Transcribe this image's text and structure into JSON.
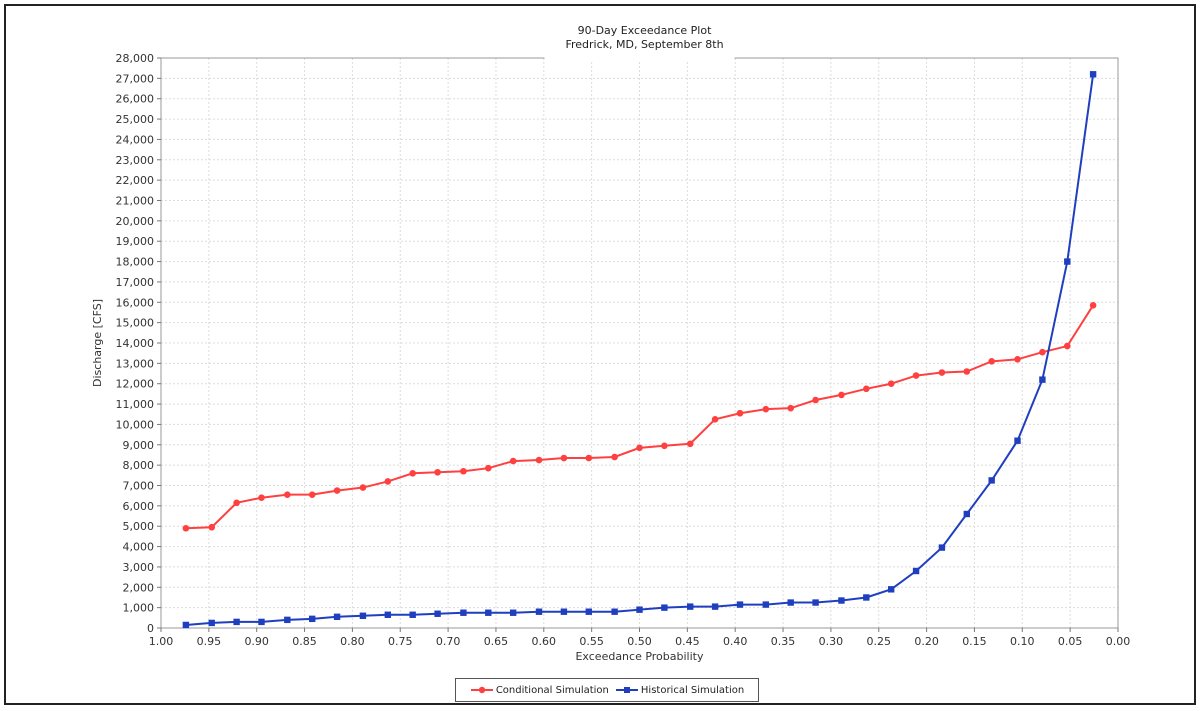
{
  "chart_data": {
    "type": "line",
    "title": "90-Day Exceedance Plot",
    "subtitle": "Fredrick, MD, September 8th",
    "xlabel": "Exceedance Probability",
    "ylabel": "Discharge [CFS]",
    "xlim": [
      1.0,
      0.0
    ],
    "ylim": [
      0,
      28000
    ],
    "x_reversed": true,
    "grid": true,
    "legend_position": "bottom",
    "x_ticks": [
      "1.00",
      "0.95",
      "0.90",
      "0.85",
      "0.80",
      "0.75",
      "0.70",
      "0.65",
      "0.60",
      "0.55",
      "0.50",
      "0.45",
      "0.40",
      "0.35",
      "0.30",
      "0.25",
      "0.20",
      "0.15",
      "0.10",
      "0.05",
      "0.00"
    ],
    "y_ticks": [
      "0",
      "1,000",
      "2,000",
      "3,000",
      "4,000",
      "5,000",
      "6,000",
      "7,000",
      "8,000",
      "9,000",
      "10,000",
      "11,000",
      "12,000",
      "13,000",
      "14,000",
      "15,000",
      "16,000",
      "17,000",
      "18,000",
      "19,000",
      "20,000",
      "21,000",
      "22,000",
      "23,000",
      "24,000",
      "25,000",
      "26,000",
      "27,000",
      "28,000"
    ],
    "x": [
      0.974,
      0.947,
      0.921,
      0.895,
      0.868,
      0.842,
      0.816,
      0.789,
      0.763,
      0.737,
      0.711,
      0.684,
      0.658,
      0.632,
      0.605,
      0.579,
      0.553,
      0.526,
      0.5,
      0.474,
      0.447,
      0.421,
      0.395,
      0.368,
      0.342,
      0.316,
      0.289,
      0.263,
      0.237,
      0.211,
      0.184,
      0.158,
      0.132,
      0.105,
      0.079,
      0.053,
      0.026
    ],
    "series": [
      {
        "name": "Conditional Simulation",
        "color": "#ff4040",
        "marker": "circle",
        "values": [
          4900,
          4950,
          6150,
          6400,
          6550,
          6550,
          6750,
          6900,
          7200,
          7600,
          7650,
          7700,
          7850,
          8200,
          8250,
          8350,
          8350,
          8400,
          8850,
          8950,
          9050,
          10250,
          10550,
          10750,
          10800,
          11200,
          11450,
          11750,
          12000,
          12400,
          12550,
          12600,
          13100,
          13200,
          13550,
          13850,
          15850
        ]
      },
      {
        "name": "Historical Simulation",
        "color": "#1f3fbf",
        "marker": "square",
        "values": [
          150,
          250,
          300,
          300,
          400,
          450,
          550,
          600,
          650,
          650,
          700,
          750,
          750,
          750,
          800,
          800,
          800,
          800,
          900,
          1000,
          1050,
          1050,
          1150,
          1150,
          1250,
          1250,
          1350,
          1500,
          1900,
          2800,
          3950,
          5600,
          7250,
          9200,
          12200,
          18000,
          27200
        ]
      }
    ]
  }
}
